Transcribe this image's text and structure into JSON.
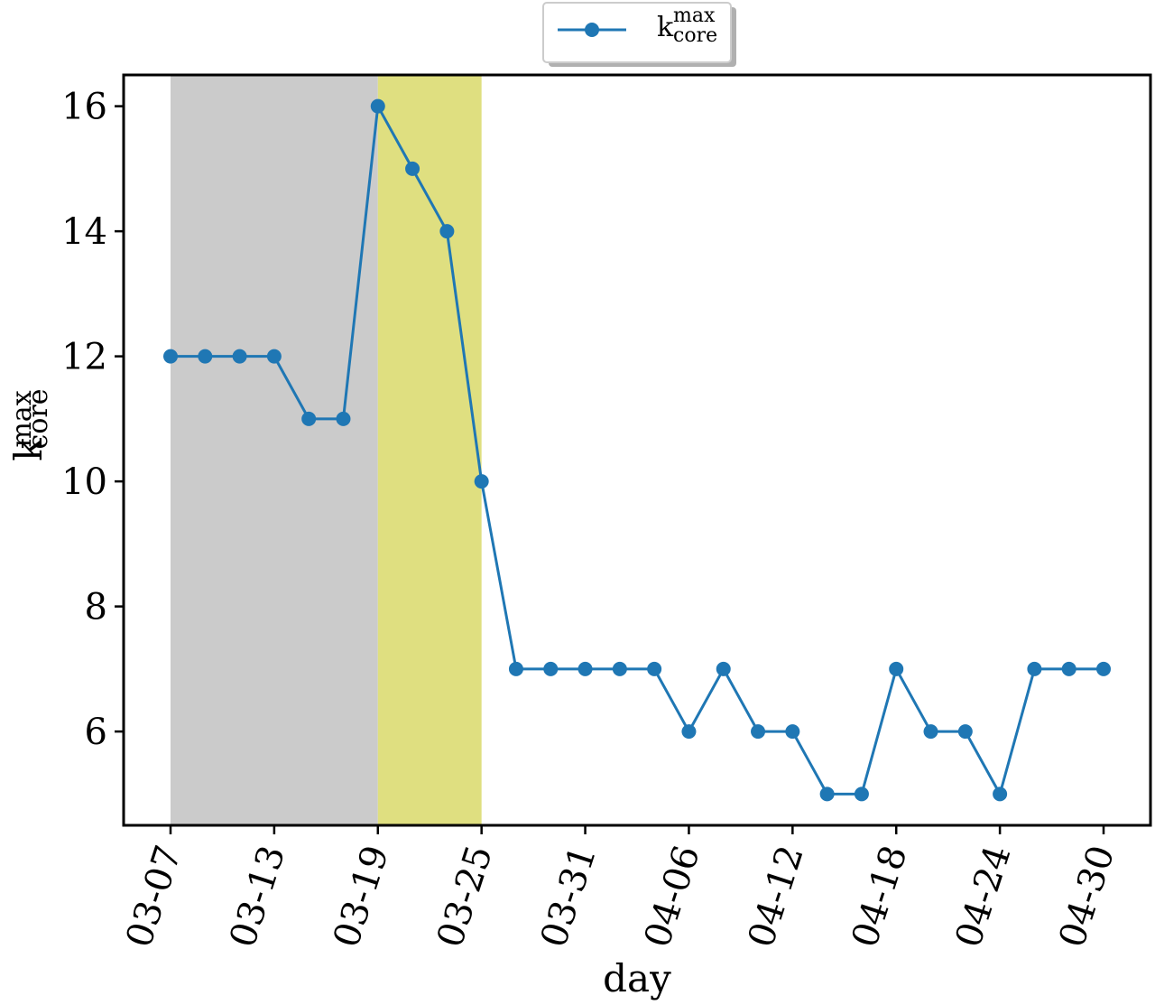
{
  "chart_data": {
    "type": "line",
    "xlabel": "day",
    "ylabel": {
      "base": "k",
      "sup": "max",
      "sub": "core"
    },
    "legend": {
      "position": "top-center",
      "entry": {
        "base": "k",
        "sup": "max",
        "sub": "core"
      }
    },
    "ylim": [
      4.5,
      16.5
    ],
    "yticks": [
      6,
      8,
      10,
      12,
      14,
      16
    ],
    "xtick_labels": [
      "03-07",
      "03-13",
      "03-19",
      "03-25",
      "03-31",
      "04-06",
      "04-12",
      "04-18",
      "04-24",
      "04-30"
    ],
    "series": [
      {
        "color": "#1f77b4",
        "marker": "circle",
        "x": [
          "03-07",
          "03-09",
          "03-11",
          "03-13",
          "03-15",
          "03-17",
          "03-19",
          "03-21",
          "03-23",
          "03-25",
          "03-27",
          "03-29",
          "03-31",
          "04-02",
          "04-04",
          "04-06",
          "04-08",
          "04-10",
          "04-12",
          "04-14",
          "04-16",
          "04-18",
          "04-20",
          "04-22",
          "04-24",
          "04-26",
          "04-28",
          "04-30"
        ],
        "values": [
          12,
          12,
          12,
          12,
          11,
          11,
          16,
          15,
          14,
          10,
          7,
          7,
          7,
          7,
          7,
          6,
          7,
          6,
          6,
          5,
          5,
          7,
          6,
          6,
          5,
          7,
          7,
          7
        ]
      }
    ],
    "shaded_regions": [
      {
        "from": "03-07",
        "to": "03-19",
        "color": "#cbcbcb"
      },
      {
        "from": "03-19",
        "to": "03-25",
        "color": "#dfdf80"
      }
    ],
    "grid": false
  }
}
